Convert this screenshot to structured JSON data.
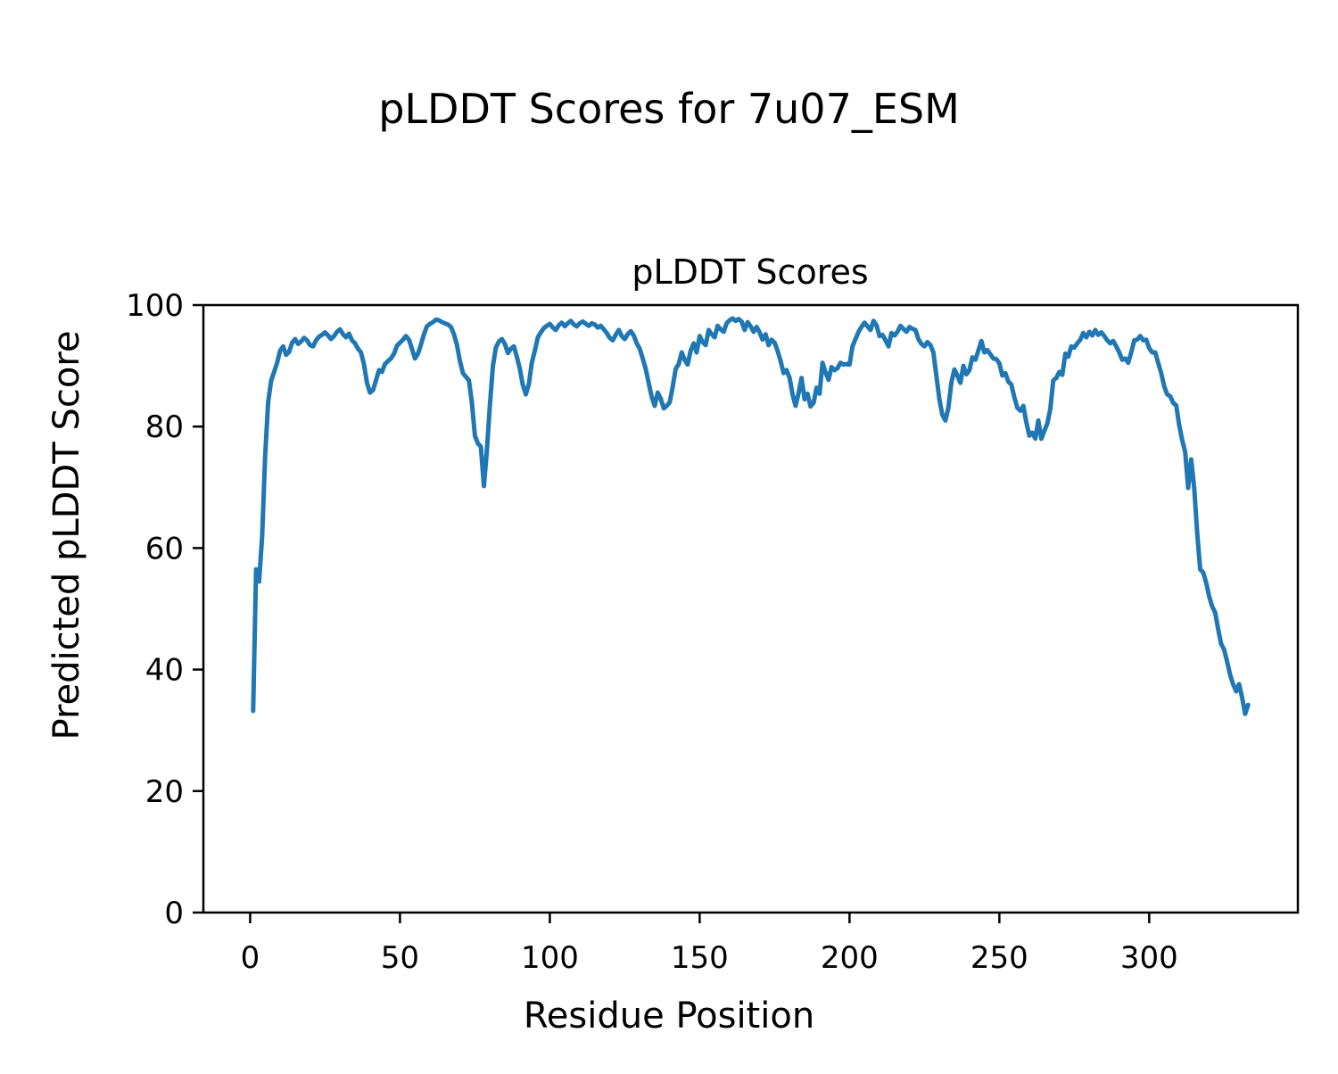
{
  "figure": {
    "suptitle": "pLDDT Scores for 7u07_ESM",
    "background_color": "#ffffff",
    "text_color": "#000000"
  },
  "chart_data": {
    "type": "line",
    "title": "pLDDT Scores",
    "xlabel": "Residue Position",
    "ylabel": "Predicted pLDDT Score",
    "grid": false,
    "legend": "none",
    "line_color": "#1f77b4",
    "xlim": [
      -15.6,
      349.6
    ],
    "ylim": [
      0,
      100
    ],
    "xticks": [
      0,
      50,
      100,
      150,
      200,
      250,
      300
    ],
    "yticks": [
      0,
      20,
      40,
      60,
      80,
      100
    ],
    "series": [
      {
        "name": "pLDDT",
        "x_start": 1,
        "x_step": 1,
        "values": [
          33.2,
          56.5,
          54.5,
          62.0,
          75.0,
          84.0,
          87.5,
          89.0,
          90.5,
          92.5,
          93.2,
          91.8,
          92.3,
          93.8,
          94.4,
          93.6,
          94.0,
          94.6,
          94.2,
          93.4,
          93.2,
          94.2,
          94.8,
          95.1,
          95.5,
          95.0,
          94.4,
          94.9,
          95.6,
          96.0,
          95.2,
          94.7,
          95.3,
          94.2,
          93.7,
          92.8,
          92.2,
          90.2,
          87.2,
          85.6,
          86.0,
          87.6,
          89.3,
          89.0,
          90.3,
          90.8,
          91.2,
          92.0,
          93.3,
          93.8,
          94.3,
          94.9,
          94.3,
          92.8,
          91.2,
          92.0,
          93.5,
          95.2,
          96.5,
          96.9,
          97.2,
          97.6,
          97.5,
          97.2,
          97.0,
          96.8,
          96.4,
          95.2,
          93.5,
          90.8,
          88.8,
          88.2,
          87.6,
          84.0,
          78.5,
          77.2,
          76.7,
          70.2,
          76.0,
          83.5,
          90.0,
          93.0,
          94.0,
          94.4,
          93.6,
          92.1,
          92.8,
          93.2,
          91.5,
          89.5,
          86.8,
          85.3,
          87.0,
          90.5,
          92.5,
          94.7,
          95.5,
          96.2,
          96.6,
          96.9,
          96.3,
          95.9,
          96.7,
          97.1,
          96.5,
          97.0,
          97.4,
          96.8,
          96.5,
          97.0,
          97.3,
          96.9,
          96.6,
          97.0,
          96.8,
          96.3,
          96.6,
          96.0,
          95.4,
          94.6,
          94.2,
          95.1,
          95.9,
          94.9,
          94.4,
          95.2,
          95.7,
          95.0,
          93.7,
          92.8,
          91.2,
          89.5,
          87.1,
          84.9,
          83.4,
          85.6,
          84.6,
          83.0,
          83.4,
          84.0,
          86.5,
          89.5,
          90.3,
          92.2,
          91.0,
          90.2,
          92.5,
          93.7,
          92.2,
          94.9,
          93.9,
          93.4,
          95.9,
          95.2,
          94.7,
          96.6,
          96.0,
          95.6,
          97.0,
          97.5,
          97.8,
          97.4,
          97.7,
          97.3,
          95.9,
          97.2,
          96.5,
          95.6,
          96.4,
          95.5,
          94.3,
          95.2,
          93.4,
          94.3,
          93.8,
          92.5,
          90.8,
          88.8,
          89.3,
          88.0,
          85.3,
          83.4,
          85.5,
          88.0,
          84.5,
          85.4,
          83.3,
          83.9,
          86.4,
          85.4,
          90.5,
          88.9,
          87.7,
          89.8,
          89.3,
          89.6,
          90.5,
          90.2,
          90.3,
          90.2,
          93.2,
          94.4,
          95.6,
          96.4,
          97.1,
          96.5,
          95.9,
          97.4,
          96.7,
          94.9,
          95.1,
          94.2,
          93.2,
          95.4,
          95.0,
          95.6,
          96.6,
          96.1,
          95.6,
          96.4,
          96.1,
          95.9,
          94.4,
          93.6,
          93.2,
          93.9,
          93.4,
          92.2,
          88.3,
          84.4,
          81.9,
          81.0,
          83.1,
          87.3,
          89.4,
          88.4,
          87.2,
          90.0,
          88.6,
          89.3,
          91.4,
          91.0,
          92.5,
          94.1,
          92.2,
          92.6,
          91.9,
          91.2,
          91.1,
          90.4,
          88.4,
          88.8,
          87.4,
          86.9,
          84.8,
          83.1,
          82.6,
          83.4,
          80.7,
          78.5,
          79.0,
          78.0,
          81.0,
          78.0,
          79.3,
          80.5,
          82.9,
          87.6,
          88.0,
          89.0,
          88.5,
          92.0,
          91.5,
          93.2,
          93.0,
          93.7,
          94.3,
          95.4,
          94.7,
          95.6,
          95.0,
          95.9,
          95.1,
          95.5,
          94.9,
          94.2,
          93.7,
          94.1,
          93.2,
          92.2,
          91.0,
          91.2,
          90.5,
          92.2,
          94.2,
          94.3,
          94.9,
          94.2,
          94.3,
          92.9,
          92.2,
          92.2,
          90.5,
          88.8,
          86.6,
          85.3,
          85.0,
          83.9,
          83.5,
          80.2,
          77.8,
          75.8,
          69.9,
          74.6,
          69.9,
          62.6,
          56.5,
          56.0,
          54.3,
          52.1,
          50.4,
          49.4,
          46.7,
          44.2,
          43.3,
          41.3,
          39.1,
          37.6,
          36.4,
          37.6,
          35.4,
          32.7,
          34.2
        ]
      }
    ]
  }
}
